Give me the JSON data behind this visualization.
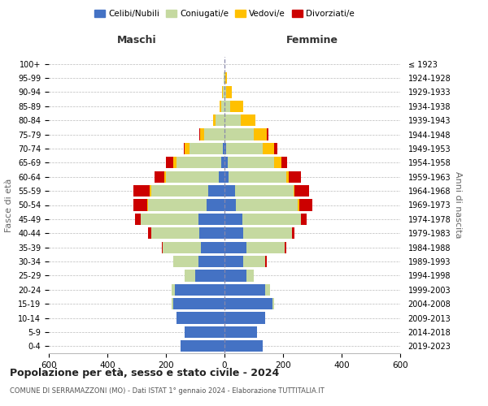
{
  "age_groups": [
    "0-4",
    "5-9",
    "10-14",
    "15-19",
    "20-24",
    "25-29",
    "30-34",
    "35-39",
    "40-44",
    "45-49",
    "50-54",
    "55-59",
    "60-64",
    "65-69",
    "70-74",
    "75-79",
    "80-84",
    "85-89",
    "90-94",
    "95-99",
    "100+"
  ],
  "birth_years": [
    "2019-2023",
    "2014-2018",
    "2009-2013",
    "2004-2008",
    "1999-2003",
    "1994-1998",
    "1989-1993",
    "1984-1988",
    "1979-1983",
    "1974-1978",
    "1969-1973",
    "1964-1968",
    "1959-1963",
    "1954-1958",
    "1949-1953",
    "1944-1948",
    "1939-1943",
    "1934-1938",
    "1929-1933",
    "1924-1928",
    "≤ 1923"
  ],
  "males": {
    "celibi": [
      150,
      135,
      165,
      175,
      170,
      100,
      90,
      80,
      85,
      90,
      60,
      55,
      20,
      10,
      5,
      0,
      0,
      0,
      0,
      0,
      0
    ],
    "coniugati": [
      0,
      0,
      0,
      5,
      10,
      35,
      85,
      130,
      165,
      195,
      200,
      195,
      180,
      155,
      115,
      70,
      30,
      12,
      5,
      2,
      0
    ],
    "vedovi": [
      0,
      0,
      0,
      0,
      0,
      0,
      0,
      0,
      0,
      0,
      5,
      5,
      5,
      10,
      15,
      12,
      10,
      5,
      2,
      0,
      0
    ],
    "divorziati": [
      0,
      0,
      0,
      0,
      0,
      0,
      0,
      5,
      10,
      20,
      45,
      55,
      35,
      25,
      5,
      5,
      0,
      0,
      0,
      0,
      0
    ]
  },
  "females": {
    "nubili": [
      130,
      110,
      140,
      165,
      140,
      75,
      65,
      75,
      65,
      60,
      40,
      35,
      15,
      10,
      5,
      0,
      0,
      0,
      0,
      0,
      0
    ],
    "coniugate": [
      0,
      0,
      0,
      5,
      15,
      25,
      75,
      130,
      165,
      200,
      210,
      200,
      195,
      160,
      125,
      100,
      55,
      20,
      5,
      3,
      0
    ],
    "vedove": [
      0,
      0,
      0,
      0,
      0,
      0,
      0,
      0,
      0,
      0,
      5,
      5,
      10,
      25,
      40,
      45,
      50,
      45,
      20,
      5,
      0
    ],
    "divorziate": [
      0,
      0,
      0,
      0,
      0,
      0,
      5,
      5,
      10,
      20,
      45,
      50,
      40,
      20,
      10,
      5,
      0,
      0,
      0,
      0,
      0
    ]
  },
  "colors": {
    "celibi": "#4472c4",
    "coniugati": "#c5d9a0",
    "vedovi": "#ffc000",
    "divorziati": "#cc0000"
  },
  "title": "Popolazione per età, sesso e stato civile - 2024",
  "subtitle": "COMUNE DI SERRAMAZZONI (MO) - Dati ISTAT 1° gennaio 2024 - Elaborazione TUTTITALIA.IT",
  "xlabel_left": "Maschi",
  "xlabel_right": "Femmine",
  "ylabel_left": "Fasce di età",
  "ylabel_right": "Anni di nascita",
  "xlim": 600,
  "legend_labels": [
    "Celibi/Nubili",
    "Coniugati/e",
    "Vedovi/e",
    "Divorziati/e"
  ],
  "bg_color": "#ffffff",
  "grid_color": "#bbbbbb"
}
